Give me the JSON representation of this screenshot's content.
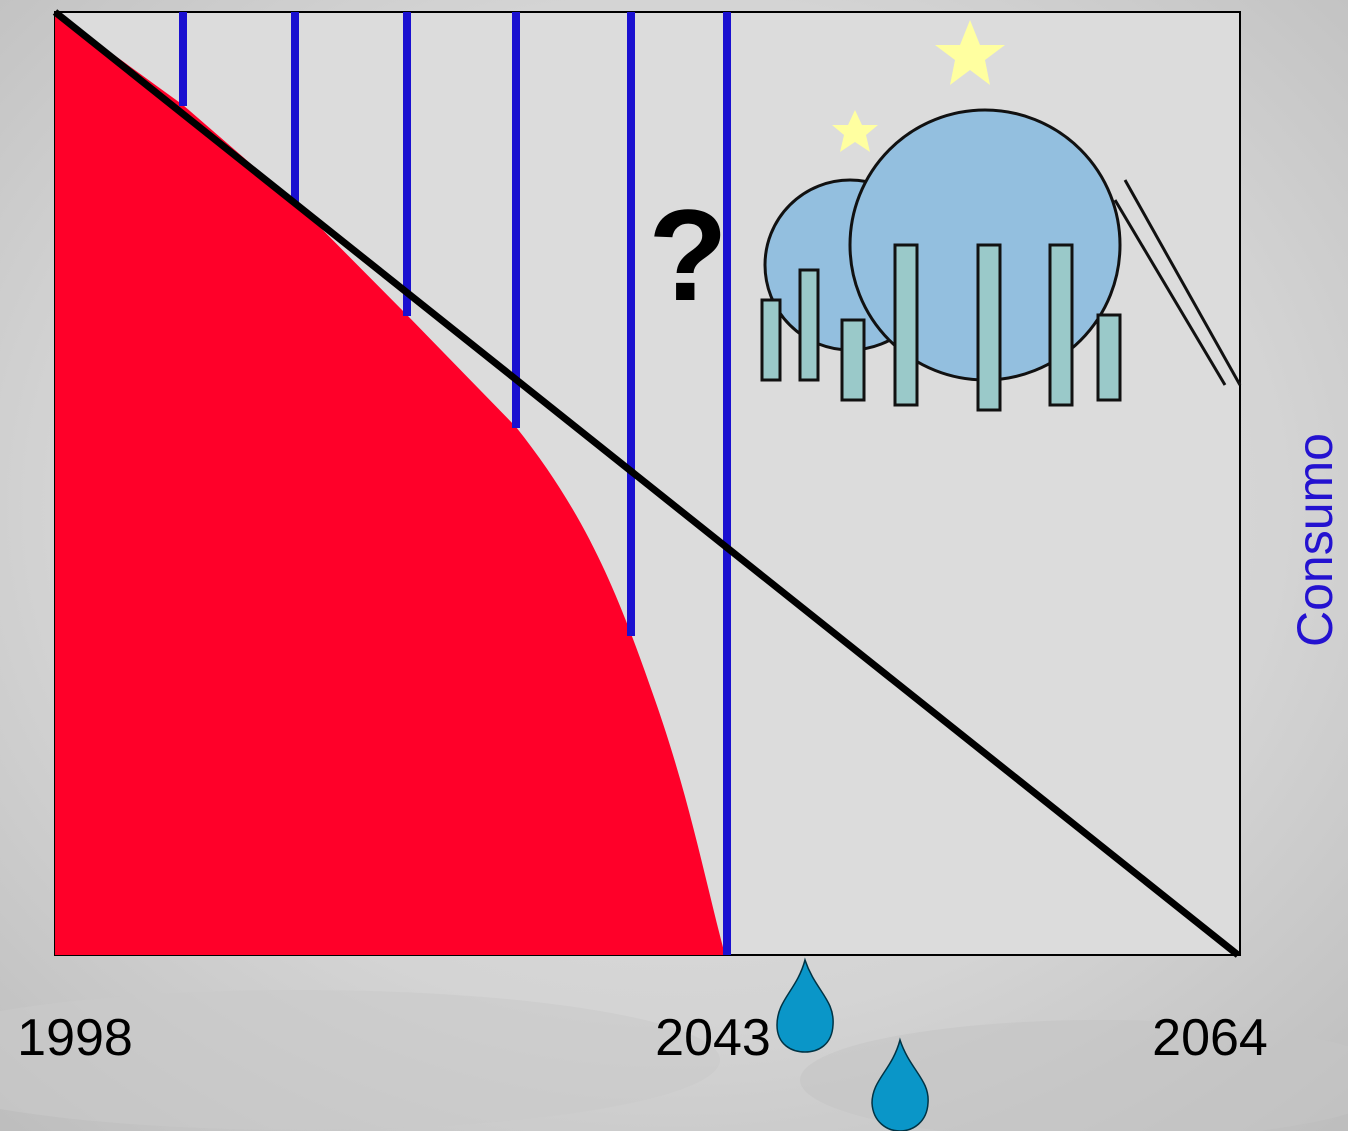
{
  "x_labels": [
    "1998",
    "2043",
    "2064"
  ],
  "side_label": "Consumo",
  "question_mark": "?"
}
